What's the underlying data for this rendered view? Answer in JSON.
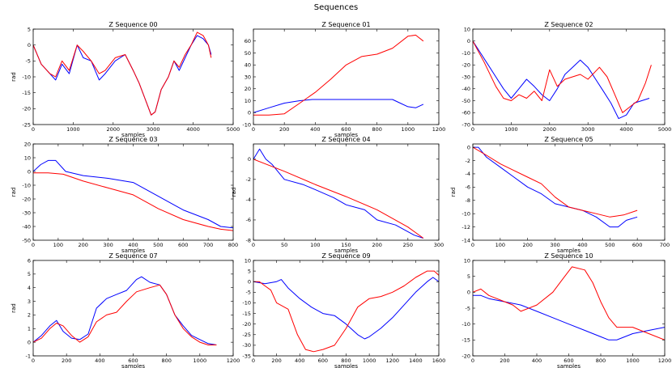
{
  "figure": {
    "title": "Sequences"
  },
  "colors": {
    "series_a": "#0000ff",
    "series_b": "#ff0000",
    "frame": "#000000"
  },
  "chart_data": [
    {
      "type": "line",
      "title": "Z Sequence 00",
      "xlabel": "samples",
      "ylabel": "rad",
      "xlim": [
        0,
        5000
      ],
      "ylim": [
        -25,
        5
      ],
      "xticks": [
        0,
        1000,
        2000,
        3000,
        4000,
        5000
      ],
      "yticks": [
        5,
        0,
        -5,
        -10,
        -15,
        -20,
        -25
      ],
      "series": [
        {
          "name": "blue",
          "color": "#0000ff",
          "x": [
            0,
            200,
            420,
            560,
            720,
            900,
            1100,
            1250,
            1450,
            1650,
            1800,
            2050,
            2300,
            2500,
            2650,
            2800,
            2950,
            3050,
            3200,
            3380,
            3520,
            3650,
            3800,
            3950,
            4100,
            4250,
            4380,
            4450
          ],
          "y": [
            0,
            -6,
            -9,
            -11,
            -6,
            -9,
            0,
            -4,
            -5,
            -11,
            -9,
            -5,
            -3,
            -8,
            -12,
            -17,
            -22,
            -21,
            -14,
            -10,
            -5,
            -8,
            -4,
            0,
            3,
            2,
            0,
            -3
          ]
        },
        {
          "name": "red",
          "color": "#ff0000",
          "x": [
            0,
            200,
            420,
            560,
            720,
            900,
            1100,
            1250,
            1450,
            1650,
            1800,
            2050,
            2300,
            2500,
            2650,
            2800,
            2950,
            3050,
            3200,
            3380,
            3520,
            3650,
            3800,
            3950,
            4100,
            4250,
            4380,
            4450
          ],
          "y": [
            0,
            -6,
            -9,
            -10,
            -5,
            -8,
            0,
            -2,
            -5,
            -9,
            -8,
            -4,
            -3,
            -8,
            -12,
            -17,
            -22,
            -21,
            -14,
            -10,
            -5,
            -7,
            -3,
            0,
            4,
            3,
            0,
            -4
          ]
        }
      ]
    },
    {
      "type": "line",
      "title": "Z Sequence 01",
      "xlabel": "samples",
      "ylabel": "",
      "xlim": [
        0,
        1200
      ],
      "ylim": [
        -10,
        70
      ],
      "xticks": [
        0,
        200,
        400,
        600,
        800,
        1000,
        1200
      ],
      "yticks": [
        60,
        50,
        40,
        30,
        20,
        10,
        0,
        -10
      ],
      "series": [
        {
          "name": "blue",
          "color": "#0000ff",
          "x": [
            0,
            100,
            200,
            300,
            380,
            500,
            700,
            900,
            950,
            1000,
            1050,
            1100
          ],
          "y": [
            0,
            4,
            8,
            10,
            11,
            11,
            11,
            11,
            8,
            5,
            4,
            7
          ]
        },
        {
          "name": "red",
          "color": "#ff0000",
          "x": [
            0,
            100,
            200,
            300,
            400,
            500,
            600,
            700,
            800,
            900,
            1000,
            1050,
            1100
          ],
          "y": [
            -2,
            -2,
            -1,
            8,
            17,
            28,
            40,
            47,
            49,
            54,
            64,
            65,
            60
          ]
        }
      ]
    },
    {
      "type": "line",
      "title": "Z Sequence 02",
      "xlabel": "",
      "ylabel": "",
      "xlim": [
        0,
        5000
      ],
      "ylim": [
        -70,
        10
      ],
      "xticks": [
        0,
        1000,
        2000,
        3000,
        4000,
        5000
      ],
      "yticks": [
        10,
        0,
        -10,
        -20,
        -30,
        -40,
        -50,
        -60,
        -70
      ],
      "series": [
        {
          "name": "blue",
          "color": "#0000ff",
          "x": [
            0,
            200,
            400,
            600,
            800,
            1000,
            1200,
            1400,
            1600,
            1800,
            2000,
            2200,
            2400,
            2600,
            2800,
            3000,
            3200,
            3400,
            3600,
            3800,
            4000,
            4200,
            4400,
            4600
          ],
          "y": [
            0,
            -10,
            -20,
            -30,
            -40,
            -48,
            -40,
            -32,
            -38,
            -45,
            -50,
            -40,
            -28,
            -22,
            -16,
            -22,
            -32,
            -42,
            -52,
            -65,
            -62,
            -52,
            -50,
            -48
          ]
        },
        {
          "name": "red",
          "color": "#ff0000",
          "x": [
            0,
            300,
            600,
            800,
            1000,
            1200,
            1400,
            1600,
            1800,
            2000,
            2200,
            2400,
            2600,
            2800,
            3000,
            3300,
            3500,
            3700,
            3900,
            4100,
            4300,
            4500,
            4650
          ],
          "y": [
            0,
            -18,
            -38,
            -48,
            -50,
            -45,
            -48,
            -42,
            -50,
            -24,
            -38,
            -32,
            -30,
            -28,
            -32,
            -22,
            -30,
            -45,
            -60,
            -55,
            -50,
            -35,
            -20
          ]
        }
      ]
    },
    {
      "type": "line",
      "title": "Z Sequence 03",
      "xlabel": "samples",
      "ylabel": "rad",
      "xlim": [
        0,
        800
      ],
      "ylim": [
        -50,
        20
      ],
      "xticks": [
        0,
        100,
        200,
        300,
        400,
        500,
        600,
        700,
        800
      ],
      "yticks": [
        20,
        10,
        0,
        -10,
        -20,
        -30,
        -40,
        -50
      ],
      "series": [
        {
          "name": "blue",
          "color": "#0000ff",
          "x": [
            0,
            30,
            60,
            90,
            130,
            200,
            300,
            400,
            500,
            600,
            700,
            750,
            800
          ],
          "y": [
            0,
            5,
            8,
            8,
            0,
            -3,
            -5,
            -8,
            -18,
            -28,
            -35,
            -40,
            -41
          ]
        },
        {
          "name": "red",
          "color": "#ff0000",
          "x": [
            0,
            60,
            120,
            200,
            300,
            400,
            500,
            600,
            700,
            750,
            800
          ],
          "y": [
            -1,
            -1,
            -2,
            -7,
            -12,
            -17,
            -27,
            -35,
            -40,
            -42,
            -43
          ]
        }
      ]
    },
    {
      "type": "line",
      "title": "Z Sequence 04",
      "xlabel": "samples",
      "ylabel": "rad",
      "xlim": [
        0,
        300
      ],
      "ylim": [
        -8,
        1.5
      ],
      "xticks": [
        0,
        50,
        100,
        150,
        200,
        250,
        300
      ],
      "yticks": [
        0,
        -2,
        -4,
        -6,
        -8
      ],
      "series": [
        {
          "name": "blue",
          "color": "#0000ff",
          "x": [
            0,
            10,
            20,
            30,
            50,
            80,
            100,
            130,
            150,
            180,
            200,
            230,
            260,
            275
          ],
          "y": [
            0,
            1,
            0,
            -0.5,
            -2,
            -2.5,
            -3,
            -3.8,
            -4.5,
            -5,
            -6,
            -6.5,
            -7.5,
            -7.8
          ]
        },
        {
          "name": "red",
          "color": "#ff0000",
          "x": [
            0,
            50,
            100,
            150,
            200,
            250,
            275
          ],
          "y": [
            0,
            -1.2,
            -2.5,
            -3.7,
            -5,
            -6.7,
            -7.8
          ]
        }
      ]
    },
    {
      "type": "line",
      "title": "Z Sequence 05",
      "xlabel": "samples",
      "ylabel": "rad",
      "xlim": [
        0,
        700
      ],
      "ylim": [
        -14,
        0.5
      ],
      "xticks": [
        0,
        100,
        200,
        300,
        400,
        500,
        600,
        700
      ],
      "yticks": [
        0,
        -2,
        -4,
        -6,
        -8,
        -10,
        -12,
        -14
      ],
      "series": [
        {
          "name": "blue",
          "color": "#0000ff",
          "x": [
            0,
            20,
            50,
            100,
            150,
            200,
            250,
            300,
            350,
            400,
            450,
            500,
            530,
            560,
            600
          ],
          "y": [
            0,
            0,
            -1.5,
            -3,
            -4.5,
            -6,
            -7,
            -8.5,
            -9,
            -9.5,
            -10.5,
            -12,
            -12,
            -11,
            -10.5
          ]
        },
        {
          "name": "red",
          "color": "#ff0000",
          "x": [
            0,
            50,
            100,
            150,
            200,
            250,
            300,
            350,
            400,
            450,
            500,
            550,
            600
          ],
          "y": [
            0,
            -1.2,
            -2.5,
            -3.5,
            -4.5,
            -5.5,
            -7.5,
            -9,
            -9.5,
            -10,
            -10.5,
            -10.2,
            -9.5
          ]
        }
      ]
    },
    {
      "type": "line",
      "title": "Z Sequence 07",
      "xlabel": "samples",
      "ylabel": "rad",
      "xlim": [
        0,
        1200
      ],
      "ylim": [
        -1,
        6
      ],
      "xticks": [
        0,
        200,
        400,
        600,
        800,
        1000,
        1200
      ],
      "yticks": [
        6,
        5,
        4,
        3,
        2,
        1,
        0,
        -1
      ],
      "series": [
        {
          "name": "blue",
          "color": "#0000ff",
          "x": [
            0,
            50,
            100,
            140,
            180,
            230,
            280,
            330,
            380,
            440,
            500,
            560,
            620,
            650,
            700,
            760,
            800,
            850,
            900,
            950,
            1000,
            1050,
            1100
          ],
          "y": [
            0,
            0.5,
            1.2,
            1.6,
            0.8,
            0.3,
            0.2,
            0.6,
            2.5,
            3.2,
            3.5,
            3.8,
            4.6,
            4.8,
            4.4,
            4.2,
            3.5,
            2,
            1.2,
            0.5,
            0.2,
            -0.1,
            -0.2
          ]
        },
        {
          "name": "red",
          "color": "#ff0000",
          "x": [
            0,
            50,
            100,
            140,
            180,
            230,
            280,
            330,
            380,
            440,
            500,
            560,
            620,
            700,
            760,
            800,
            850,
            900,
            950,
            1000,
            1050,
            1100
          ],
          "y": [
            0,
            0.3,
            1,
            1.4,
            1.2,
            0.5,
            0,
            0.4,
            1.5,
            2,
            2.2,
            3,
            3.7,
            4,
            4.2,
            3.5,
            2,
            1,
            0.4,
            0,
            -0.2,
            -0.2
          ]
        }
      ]
    },
    {
      "type": "line",
      "title": "Z Sequence 09",
      "xlabel": "samples",
      "ylabel": "",
      "xlim": [
        0,
        1600
      ],
      "ylim": [
        -35,
        10
      ],
      "xticks": [
        0,
        200,
        400,
        600,
        800,
        1000,
        1200,
        1400,
        1600
      ],
      "yticks": [
        10,
        5,
        0,
        -5,
        -10,
        -15,
        -20,
        -25,
        -30,
        -35
      ],
      "series": [
        {
          "name": "blue",
          "color": "#0000ff",
          "x": [
            0,
            100,
            200,
            240,
            300,
            400,
            500,
            600,
            700,
            800,
            900,
            960,
            1000,
            1100,
            1200,
            1300,
            1400,
            1500,
            1550,
            1600
          ],
          "y": [
            0,
            -1,
            0,
            1,
            -3,
            -8,
            -12,
            -15,
            -16,
            -20,
            -25,
            -27,
            -26,
            -22,
            -17,
            -11,
            -5,
            0,
            2,
            0
          ]
        },
        {
          "name": "red",
          "color": "#ff0000",
          "x": [
            0,
            50,
            100,
            150,
            200,
            300,
            380,
            450,
            520,
            600,
            700,
            800,
            900,
            1000,
            1100,
            1200,
            1300,
            1400,
            1500,
            1560,
            1600
          ],
          "y": [
            0,
            0,
            -2,
            -4,
            -10,
            -13,
            -25,
            -32,
            -33,
            -32,
            -30,
            -22,
            -12,
            -8,
            -7,
            -5,
            -2,
            2,
            5,
            5,
            3
          ]
        }
      ]
    },
    {
      "type": "line",
      "title": "Z Sequence 10",
      "xlabel": "samples",
      "ylabel": "",
      "xlim": [
        0,
        1200
      ],
      "ylim": [
        -20,
        10
      ],
      "xticks": [
        0,
        200,
        400,
        600,
        800,
        1000,
        1200
      ],
      "yticks": [
        10,
        5,
        0,
        -5,
        -10,
        -15,
        -20
      ],
      "series": [
        {
          "name": "blue",
          "color": "#0000ff",
          "x": [
            0,
            50,
            100,
            200,
            300,
            400,
            500,
            600,
            700,
            800,
            850,
            900,
            1000,
            1100,
            1200
          ],
          "y": [
            -1,
            -1,
            -2,
            -3,
            -4,
            -6,
            -8,
            -10,
            -12,
            -14,
            -15,
            -15,
            -13,
            -12,
            -11
          ]
        },
        {
          "name": "red",
          "color": "#ff0000",
          "x": [
            0,
            50,
            100,
            150,
            200,
            250,
            300,
            400,
            500,
            560,
            620,
            700,
            750,
            800,
            850,
            900,
            1000,
            1100,
            1200
          ],
          "y": [
            0,
            1,
            -1,
            -2,
            -3,
            -4,
            -6,
            -4,
            0,
            4,
            8,
            7,
            3,
            -3,
            -8,
            -11,
            -11,
            -13,
            -15
          ]
        }
      ]
    }
  ]
}
